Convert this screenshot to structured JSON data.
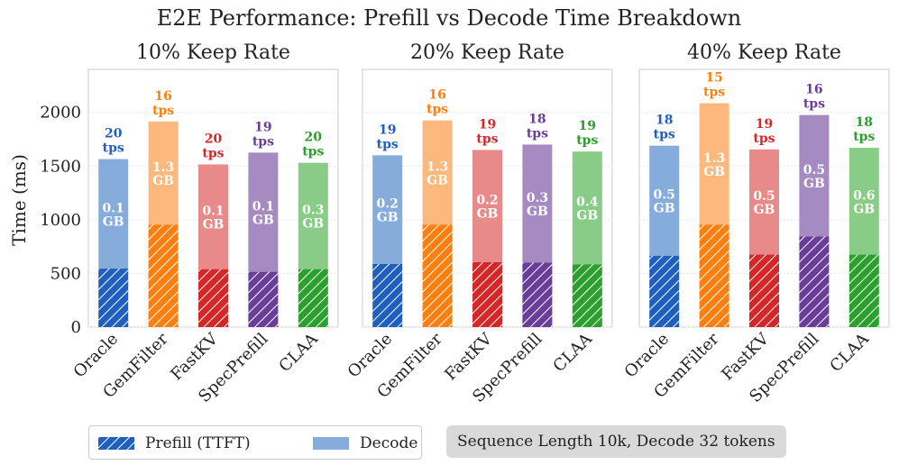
{
  "chart_data": {
    "type": "bar",
    "title": "E2E Performance: Prefill vs Decode Time Breakdown",
    "ylabel": "Time (ms)",
    "ylim": [
      0,
      2400
    ],
    "yticks": [
      "0",
      "500",
      "1000",
      "1500",
      "2000"
    ],
    "grid": true,
    "categories": [
      "Oracle",
      "GemFilter",
      "FastKV",
      "SpecPrefill",
      "CLAA"
    ],
    "colors": [
      "#1f5fbf",
      "#ff7f0e",
      "#d62728",
      "#6a3d9a",
      "#2ca02c"
    ],
    "decode_colors": [
      "#86acdc",
      "#fdb97d",
      "#e88a8a",
      "#a68bc2",
      "#88cc88"
    ],
    "legend": [
      {
        "label": "Prefill (TTFT)",
        "style": "hatched"
      },
      {
        "label": "Decode",
        "style": "solid"
      }
    ],
    "annotation": "Sequence Length 10k, Decode 32 tokens",
    "panels": [
      {
        "title": "10% Keep Rate",
        "prefill": [
          545,
          955,
          540,
          515,
          540
        ],
        "total": [
          1565,
          1915,
          1515,
          1625,
          1530
        ],
        "memory": [
          "0.1\nGB",
          "1.3\nGB",
          "0.1\nGB",
          "0.1\nGB",
          "0.3\nGB"
        ],
        "tps": [
          "20\ntps",
          "16\ntps",
          "20\ntps",
          "19\ntps",
          "20\ntps"
        ]
      },
      {
        "title": "20% Keep Rate",
        "prefill": [
          588,
          955,
          605,
          600,
          585
        ],
        "total": [
          1600,
          1925,
          1650,
          1700,
          1635
        ],
        "memory": [
          "0.2\nGB",
          "1.3\nGB",
          "0.2\nGB",
          "0.3\nGB",
          "0.4\nGB"
        ],
        "tps": [
          "19\ntps",
          "16\ntps",
          "19\ntps",
          "18\ntps",
          "19\ntps"
        ]
      },
      {
        "title": "40% Keep Rate",
        "prefill": [
          665,
          955,
          675,
          845,
          675
        ],
        "total": [
          1690,
          2085,
          1655,
          1975,
          1670
        ],
        "memory": [
          "0.5\nGB",
          "1.3\nGB",
          "0.5\nGB",
          "0.5\nGB",
          "0.6\nGB"
        ],
        "tps": [
          "18\ntps",
          "15\ntps",
          "19\ntps",
          "16\ntps",
          "18\ntps"
        ]
      }
    ]
  }
}
